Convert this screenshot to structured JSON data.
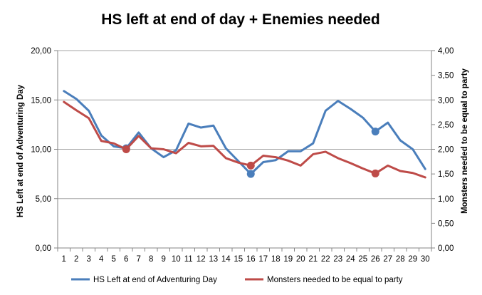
{
  "chart_data": {
    "type": "line",
    "title": "HS left at end of day + Enemies needed",
    "x": [
      1,
      2,
      3,
      4,
      5,
      6,
      7,
      8,
      9,
      10,
      11,
      12,
      13,
      14,
      15,
      16,
      17,
      18,
      19,
      20,
      21,
      22,
      23,
      24,
      25,
      26,
      27,
      28,
      29,
      30
    ],
    "x_tick_labels": [
      "1",
      "2",
      "3",
      "4",
      "5",
      "6",
      "7",
      "8",
      "9",
      "10",
      "11",
      "12",
      "13",
      "14",
      "15",
      "16",
      "17",
      "18",
      "19",
      "20",
      "21",
      "22",
      "23",
      "24",
      "25",
      "26",
      "27",
      "28",
      "29",
      "30"
    ],
    "y_left": {
      "label": "HS Left at end of Adventuring Day",
      "ylim": [
        0,
        20
      ],
      "ticks": [
        "0,00",
        "5,00",
        "10,00",
        "15,00",
        "20,00"
      ]
    },
    "y_right": {
      "label": "Monsters needed to be equal to party",
      "ylim": [
        0,
        4
      ],
      "ticks": [
        "0,00",
        "0,50",
        "1,00",
        "1,50",
        "2,00",
        "2,50",
        "3,00",
        "3,50",
        "4,00"
      ]
    },
    "grid": true,
    "legend_position": "bottom",
    "series": [
      {
        "name": "HS Left at end of Adventuring Day",
        "axis": "left",
        "color": "#4a7ebb",
        "values": [
          15.9,
          15.1,
          13.9,
          11.4,
          10.3,
          10.1,
          11.7,
          10.1,
          9.2,
          9.9,
          12.6,
          12.2,
          12.4,
          10.1,
          8.8,
          7.5,
          8.7,
          8.9,
          9.8,
          9.8,
          10.6,
          13.9,
          14.9,
          14.1,
          13.2,
          11.8,
          12.7,
          10.9,
          10.0,
          8.0
        ],
        "markers": [
          6,
          16,
          26
        ]
      },
      {
        "name": "Monsters needed to be equal to party",
        "axis": "right",
        "color": "#be4b48",
        "values": [
          2.96,
          2.79,
          2.63,
          2.17,
          2.12,
          2.0,
          2.27,
          2.02,
          2.0,
          1.92,
          2.13,
          2.06,
          2.07,
          1.82,
          1.73,
          1.67,
          1.87,
          1.84,
          1.77,
          1.67,
          1.9,
          1.95,
          1.82,
          1.72,
          1.61,
          1.51,
          1.67,
          1.56,
          1.52,
          1.43
        ],
        "markers": [
          6,
          16,
          26
        ]
      }
    ]
  }
}
